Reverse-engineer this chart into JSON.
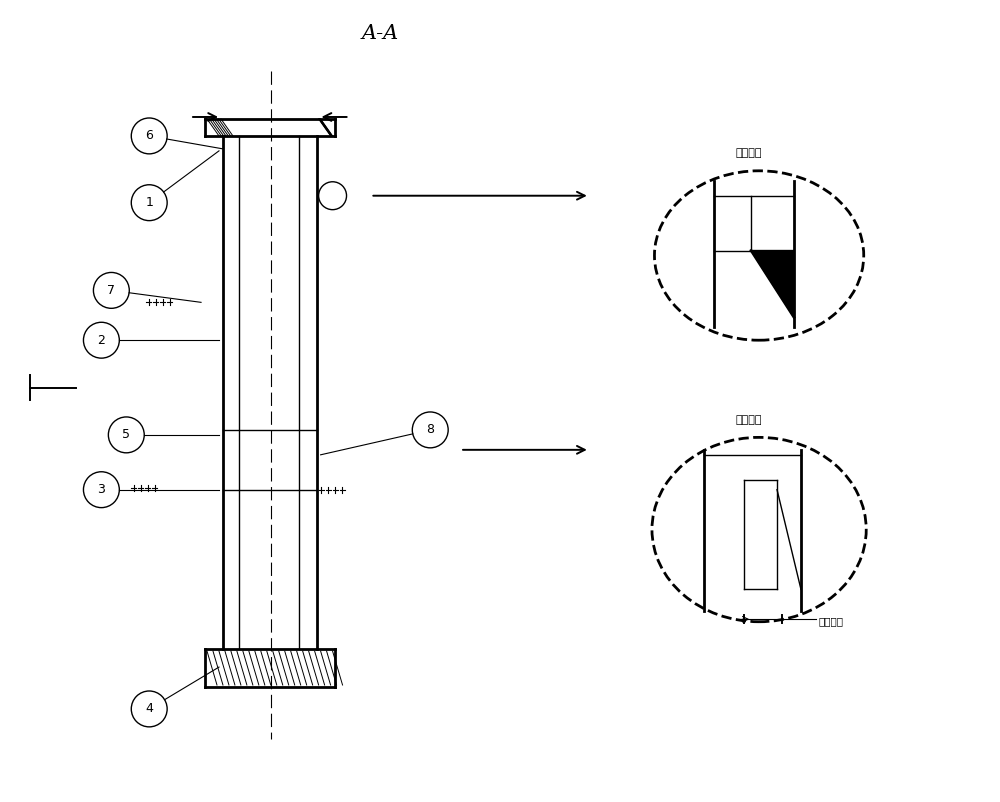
{
  "title": "A-A",
  "bg_color": "#ffffff",
  "line_color": "#000000",
  "weld_text_top": "焊接结构",
  "weld_text_bottom": "妈接结构",
  "magnify_text": "放大图样"
}
